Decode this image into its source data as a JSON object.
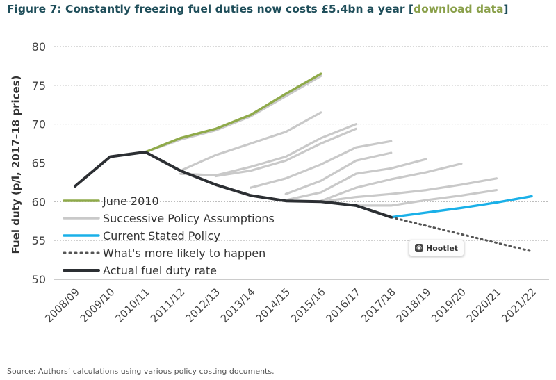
{
  "title": {
    "main": "Figure 7: Constantly freezing fuel duties now costs £5.4bn a year",
    "bracket_open": " [",
    "link": "download data",
    "bracket_close": "]"
  },
  "source": "Source: Authors’ calculations using various policy costing documents.",
  "badge": {
    "label": "Hootlet",
    "icon": "owl-icon"
  },
  "colors": {
    "june2010": "#8faa4a",
    "successive": "#c9c9c9",
    "current": "#1ab0e8",
    "likely": "#555555",
    "actual": "#2c2f33",
    "grid": "#b5b5b5"
  },
  "chart_data": {
    "type": "line",
    "ylabel": "Fuel duty (p/l, 2017–18 prices)",
    "xlabel": "",
    "ylim": [
      50,
      80
    ],
    "yticks": [
      50,
      55,
      60,
      65,
      70,
      75,
      80
    ],
    "grid": "horizontal-dotted",
    "legend_position": "lower-left",
    "categories": [
      "2008/09",
      "2009/10",
      "2010/11",
      "2011/12",
      "2012/13",
      "2013/14",
      "2014/15",
      "2015/16",
      "2016/17",
      "2017/18",
      "2018/19",
      "2019/20",
      "2020/21",
      "2021/22"
    ],
    "series": [
      {
        "name": "June 2010",
        "key": "june2010",
        "style": "solid",
        "x": [
          2,
          3,
          4,
          5,
          6,
          7
        ],
        "values": [
          66.4,
          68.2,
          69.4,
          71.2,
          73.9,
          76.5
        ]
      },
      {
        "name": "Successive Policy Assumptions",
        "key": "successive",
        "style": "solid",
        "lines": [
          {
            "x": [
              2,
              3,
              4,
              5,
              6,
              7
            ],
            "values": [
              66.4,
              68.0,
              69.2,
              71.0,
              73.6,
              76.2
            ]
          },
          {
            "x": [
              3,
              4,
              5,
              6,
              7
            ],
            "values": [
              64.0,
              66.0,
              67.5,
              69.0,
              71.5
            ]
          },
          {
            "x": [
              3,
              4,
              5,
              6,
              7,
              8
            ],
            "values": [
              63.6,
              63.4,
              64.5,
              65.8,
              68.2,
              70.0
            ]
          },
          {
            "x": [
              4,
              5,
              6,
              7,
              8
            ],
            "values": [
              63.3,
              64.0,
              65.3,
              67.5,
              69.4
            ]
          },
          {
            "x": [
              5,
              6,
              7,
              8,
              9
            ],
            "values": [
              61.8,
              63.0,
              64.8,
              67.0,
              67.8
            ]
          },
          {
            "x": [
              6,
              7,
              8,
              9
            ],
            "values": [
              61.0,
              62.7,
              65.3,
              66.3
            ]
          },
          {
            "x": [
              6,
              7,
              8,
              9,
              10
            ],
            "values": [
              60.2,
              61.2,
              63.6,
              64.3,
              65.5
            ]
          },
          {
            "x": [
              7,
              8,
              9,
              10,
              11
            ],
            "values": [
              60.1,
              61.8,
              62.9,
              63.8,
              64.9
            ]
          },
          {
            "x": [
              7,
              8,
              9,
              10,
              11,
              12
            ],
            "values": [
              60.0,
              60.6,
              61.0,
              61.5,
              62.2,
              63.0
            ]
          },
          {
            "x": [
              8,
              9,
              10,
              11,
              12
            ],
            "values": [
              59.5,
              59.5,
              60.2,
              60.8,
              61.5
            ]
          }
        ]
      },
      {
        "name": "Current Stated Policy",
        "key": "current",
        "style": "solid",
        "x": [
          8,
          9,
          10,
          11,
          12,
          13
        ],
        "values": [
          59.5,
          58.0,
          58.6,
          59.2,
          59.9,
          60.7
        ]
      },
      {
        "name": "What's more likely to happen",
        "key": "likely",
        "style": "dotted",
        "x": [
          9,
          10,
          11,
          12,
          13
        ],
        "values": [
          58.0,
          56.9,
          55.8,
          54.7,
          53.6
        ]
      },
      {
        "name": "Actual fuel duty rate",
        "key": "actual",
        "style": "solid",
        "x": [
          0,
          1,
          2,
          3,
          4,
          5,
          6,
          7,
          8,
          9
        ],
        "values": [
          62.0,
          65.8,
          66.4,
          64.0,
          62.2,
          60.8,
          60.1,
          60.0,
          59.5,
          58.0
        ]
      }
    ]
  }
}
